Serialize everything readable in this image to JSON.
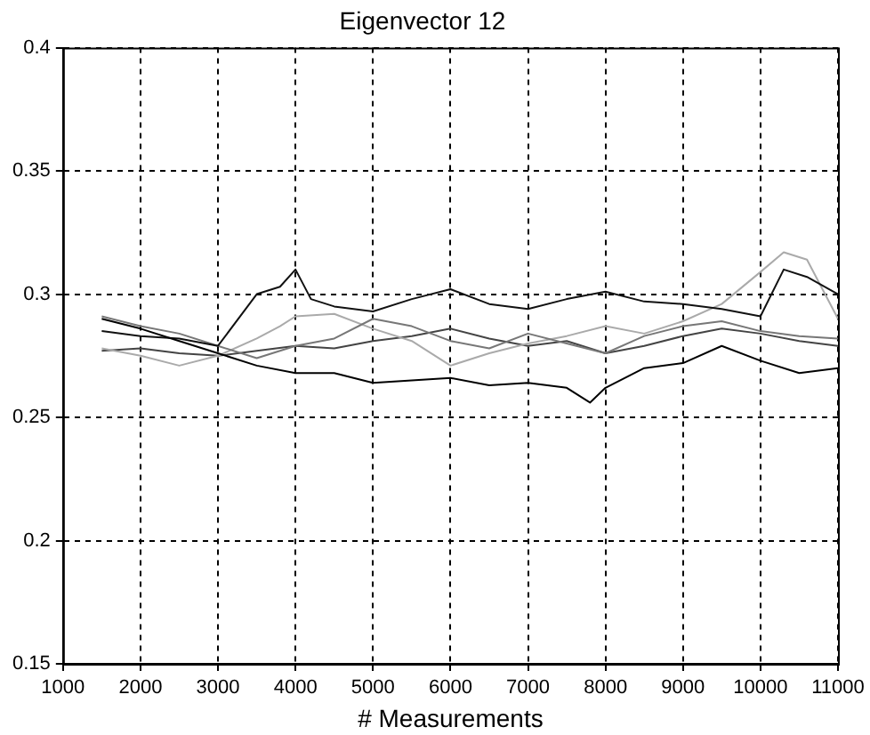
{
  "chart_data": {
    "type": "line",
    "title": "Eigenvector 12",
    "xlabel": "# Measurements",
    "xlim": [
      1000,
      11000
    ],
    "xticks": [
      1000,
      2000,
      3000,
      4000,
      5000,
      6000,
      7000,
      8000,
      9000,
      10000,
      11000
    ],
    "ylim": [
      0.15,
      0.4
    ],
    "yticks": [
      0.15,
      0.2,
      0.25,
      0.3,
      0.35,
      0.4
    ],
    "grid": true,
    "legend": false,
    "marker": "none",
    "line_style": "solid",
    "series": [
      {
        "color": "#000000",
        "x": [
          1500,
          2000,
          2500,
          3000,
          3500,
          4000,
          4500,
          5000,
          5500,
          6000,
          6500,
          7000,
          7500,
          7800,
          8000,
          8500,
          9000,
          9500,
          10000,
          10500,
          11000
        ],
        "values": [
          0.29,
          0.286,
          0.281,
          0.276,
          0.271,
          0.268,
          0.268,
          0.264,
          0.265,
          0.266,
          0.263,
          0.264,
          0.262,
          0.256,
          0.262,
          0.27,
          0.272,
          0.279,
          0.273,
          0.268,
          0.27
        ]
      },
      {
        "color": "#111111",
        "x": [
          1500,
          2000,
          2500,
          3000,
          3500,
          3800,
          4000,
          4200,
          4500,
          5000,
          5500,
          6000,
          6500,
          7000,
          7500,
          8000,
          8500,
          9000,
          9500,
          10000,
          10300,
          10600,
          11000
        ],
        "values": [
          0.285,
          0.283,
          0.282,
          0.279,
          0.3,
          0.303,
          0.31,
          0.298,
          0.295,
          0.293,
          0.298,
          0.302,
          0.296,
          0.294,
          0.298,
          0.301,
          0.297,
          0.296,
          0.294,
          0.291,
          0.31,
          0.307,
          0.3
        ]
      },
      {
        "color": "#777777",
        "x": [
          1500,
          2000,
          2500,
          3000,
          3500,
          4000,
          4500,
          5000,
          5500,
          6000,
          6500,
          7000,
          7500,
          8000,
          8500,
          9000,
          9500,
          10000,
          10500,
          11000
        ],
        "values": [
          0.291,
          0.287,
          0.284,
          0.279,
          0.274,
          0.279,
          0.282,
          0.29,
          0.287,
          0.281,
          0.278,
          0.284,
          0.28,
          0.276,
          0.283,
          0.287,
          0.289,
          0.285,
          0.283,
          0.282
        ]
      },
      {
        "color": "#aaaaaa",
        "x": [
          1500,
          2000,
          2500,
          3000,
          3500,
          3800,
          4000,
          4500,
          5000,
          5500,
          6000,
          6500,
          7000,
          7500,
          8000,
          8500,
          9000,
          9500,
          10000,
          10300,
          10600,
          11000
        ],
        "values": [
          0.278,
          0.275,
          0.271,
          0.275,
          0.282,
          0.287,
          0.291,
          0.292,
          0.286,
          0.281,
          0.271,
          0.276,
          0.28,
          0.283,
          0.287,
          0.284,
          0.289,
          0.296,
          0.309,
          0.317,
          0.314,
          0.29
        ]
      },
      {
        "color": "#444444",
        "x": [
          1500,
          2000,
          2500,
          3000,
          3500,
          4000,
          4500,
          5000,
          5500,
          6000,
          6500,
          7000,
          7500,
          8000,
          8500,
          9000,
          9500,
          10000,
          10500,
          11000
        ],
        "values": [
          0.277,
          0.278,
          0.276,
          0.275,
          0.277,
          0.279,
          0.278,
          0.281,
          0.283,
          0.286,
          0.282,
          0.279,
          0.281,
          0.276,
          0.279,
          0.283,
          0.286,
          0.284,
          0.281,
          0.279
        ]
      }
    ]
  }
}
